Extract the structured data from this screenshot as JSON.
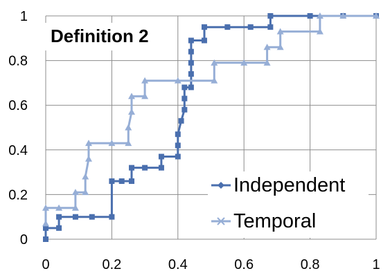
{
  "chart_data": {
    "type": "line",
    "title": "",
    "annotation": "Definition 2",
    "xlabel": "",
    "ylabel": "",
    "xlim": [
      0,
      1
    ],
    "ylim": [
      0,
      1
    ],
    "x_ticks": [
      "0",
      "0.2",
      "0.4",
      "0.6",
      "0.8",
      "1"
    ],
    "y_ticks": [
      "0",
      "0.2",
      "0.4",
      "0.6",
      "0.8",
      "1"
    ],
    "grid": true,
    "legend_position": "bottom-right",
    "step": true,
    "series": [
      {
        "name": "Independent",
        "color": "#4a6fae",
        "marker": "square",
        "points": [
          [
            0,
            0
          ],
          [
            0,
            0.05
          ],
          [
            0.04,
            0.05
          ],
          [
            0.04,
            0.1
          ],
          [
            0.09,
            0.1
          ],
          [
            0.14,
            0.1
          ],
          [
            0.2,
            0.1
          ],
          [
            0.2,
            0.26
          ],
          [
            0.23,
            0.26
          ],
          [
            0.26,
            0.26
          ],
          [
            0.26,
            0.32
          ],
          [
            0.3,
            0.32
          ],
          [
            0.35,
            0.32
          ],
          [
            0.35,
            0.37
          ],
          [
            0.4,
            0.37
          ],
          [
            0.4,
            0.42
          ],
          [
            0.4,
            0.47
          ],
          [
            0.41,
            0.53
          ],
          [
            0.42,
            0.58
          ],
          [
            0.42,
            0.63
          ],
          [
            0.42,
            0.68
          ],
          [
            0.44,
            0.68
          ],
          [
            0.44,
            0.74
          ],
          [
            0.44,
            0.79
          ],
          [
            0.44,
            0.84
          ],
          [
            0.44,
            0.89
          ],
          [
            0.48,
            0.89
          ],
          [
            0.48,
            0.95
          ],
          [
            0.55,
            0.95
          ],
          [
            0.62,
            0.95
          ],
          [
            0.68,
            0.95
          ],
          [
            0.68,
            1.0
          ],
          [
            0.8,
            1.0
          ],
          [
            0.9,
            1.0
          ],
          [
            1.0,
            1.0
          ]
        ]
      },
      {
        "name": "Temporal",
        "color": "#96aed6",
        "marker": "triangle",
        "points": [
          [
            0,
            0.07
          ],
          [
            0,
            0.14
          ],
          [
            0.04,
            0.14
          ],
          [
            0.09,
            0.14
          ],
          [
            0.09,
            0.21
          ],
          [
            0.12,
            0.21
          ],
          [
            0.12,
            0.28
          ],
          [
            0.13,
            0.36
          ],
          [
            0.13,
            0.43
          ],
          [
            0.2,
            0.43
          ],
          [
            0.25,
            0.43
          ],
          [
            0.25,
            0.5
          ],
          [
            0.26,
            0.57
          ],
          [
            0.26,
            0.64
          ],
          [
            0.3,
            0.64
          ],
          [
            0.3,
            0.71
          ],
          [
            0.4,
            0.71
          ],
          [
            0.51,
            0.71
          ],
          [
            0.51,
            0.79
          ],
          [
            0.6,
            0.79
          ],
          [
            0.67,
            0.79
          ],
          [
            0.67,
            0.86
          ],
          [
            0.71,
            0.86
          ],
          [
            0.71,
            0.93
          ],
          [
            0.83,
            0.93
          ],
          [
            0.83,
            1.0
          ],
          [
            0.9,
            1.0
          ],
          [
            1.0,
            1.0
          ]
        ]
      }
    ]
  }
}
